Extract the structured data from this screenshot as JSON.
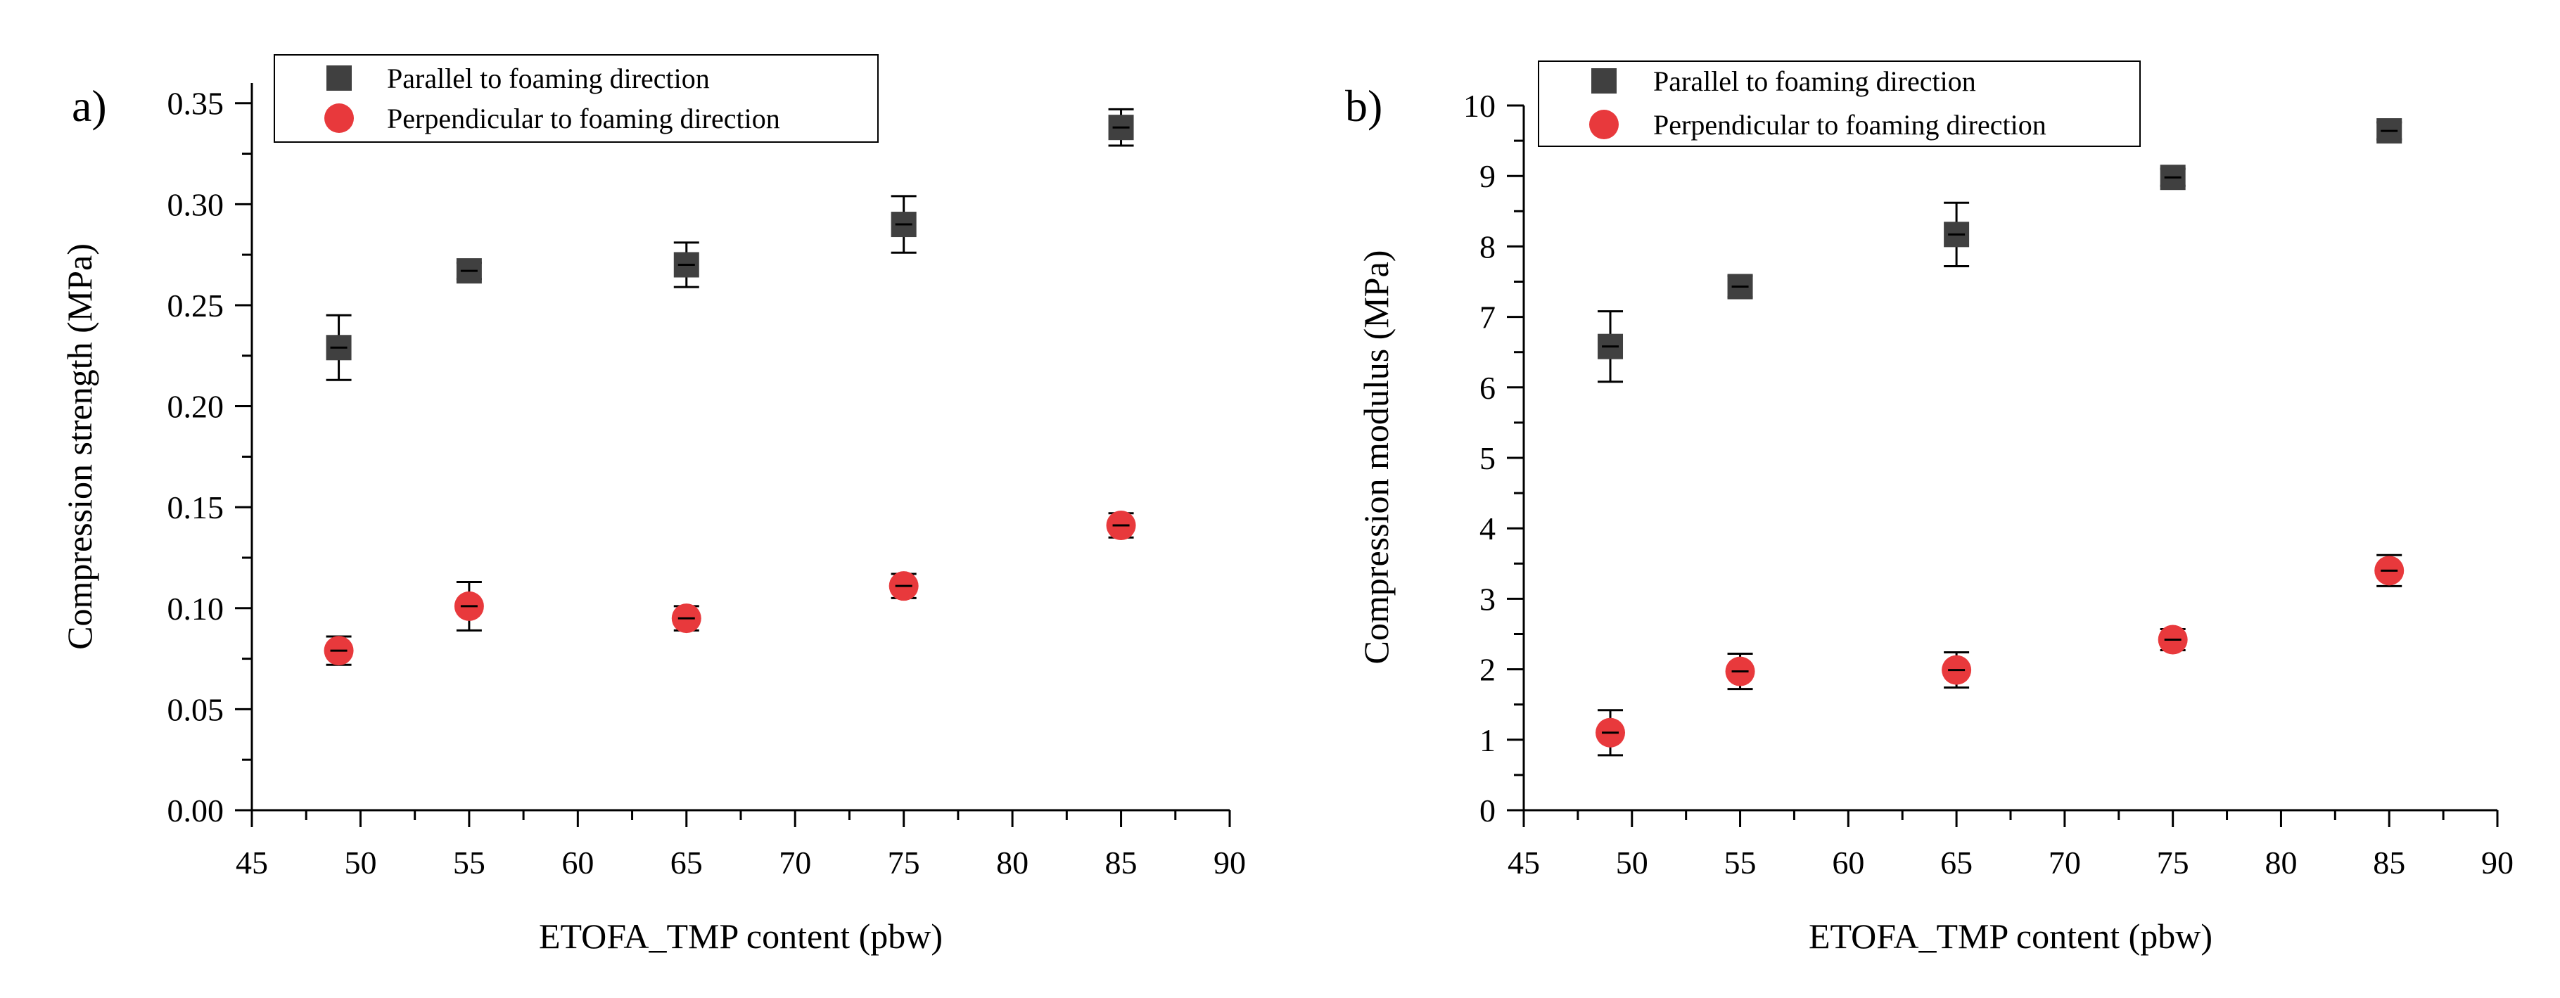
{
  "chart_data": [
    {
      "type": "scatter",
      "panel_label": "a)",
      "xlabel": "ETOFA_TMP content (pbw)",
      "ylabel": "Compression strength (MPa)",
      "xlim": [
        45,
        90
      ],
      "ylim": [
        0,
        0.36
      ],
      "x_ticks": [
        "45",
        "50",
        "55",
        "60",
        "65",
        "70",
        "75",
        "80",
        "85",
        "90"
      ],
      "y_ticks": [
        "0.00",
        "0.05",
        "0.10",
        "0.15",
        "0.20",
        "0.25",
        "0.30",
        "0.35"
      ],
      "grid": false,
      "legend_position": "top",
      "series": [
        {
          "name": "Parallel to foaming direction",
          "marker": "square",
          "color": "#404040",
          "x": [
            49,
            55,
            65,
            75,
            85
          ],
          "y": [
            0.229,
            0.267,
            0.27,
            0.29,
            0.338
          ],
          "error": [
            0.016,
            0.004,
            0.011,
            0.014,
            0.009
          ]
        },
        {
          "name": "Perpendicular to foaming direction",
          "marker": "circle",
          "color": "#e8393c",
          "x": [
            49,
            55,
            65,
            75,
            85
          ],
          "y": [
            0.079,
            0.101,
            0.095,
            0.111,
            0.141
          ],
          "error": [
            0.007,
            0.012,
            0.006,
            0.006,
            0.006
          ]
        }
      ]
    },
    {
      "type": "scatter",
      "panel_label": "b)",
      "xlabel": "ETOFA_TMP content (pbw)",
      "ylabel": "Compression modulus (MPa)",
      "xlim": [
        45,
        90
      ],
      "ylim": [
        0,
        10
      ],
      "x_ticks": [
        "45",
        "50",
        "55",
        "60",
        "65",
        "70",
        "75",
        "80",
        "85",
        "90"
      ],
      "y_ticks": [
        "0",
        "1",
        "2",
        "3",
        "4",
        "5",
        "6",
        "7",
        "8",
        "9",
        "10"
      ],
      "grid": false,
      "legend_position": "top",
      "series": [
        {
          "name": "Parallel to foaming direction",
          "marker": "square",
          "color": "#404040",
          "x": [
            49,
            55,
            65,
            75,
            85
          ],
          "y": [
            6.58,
            7.43,
            8.17,
            8.98,
            9.64
          ],
          "error": [
            0.5,
            0.15,
            0.45,
            0.12,
            0.12
          ]
        },
        {
          "name": "Perpendicular to foaming direction",
          "marker": "circle",
          "color": "#e8393c",
          "x": [
            49,
            55,
            65,
            75,
            85
          ],
          "y": [
            1.1,
            1.97,
            1.99,
            2.42,
            3.4
          ],
          "error": [
            0.32,
            0.25,
            0.25,
            0.15,
            0.22
          ]
        }
      ]
    }
  ]
}
